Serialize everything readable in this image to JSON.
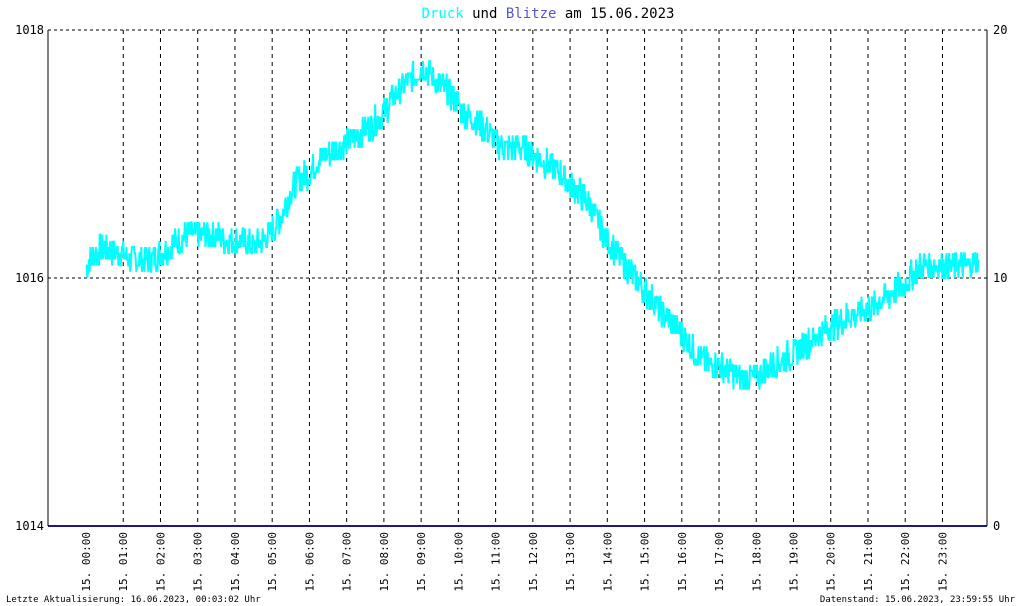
{
  "title": {
    "part1": "Druck",
    "part2": " und ",
    "part3": "Blitze",
    "part4": " am 15.06.2023",
    "color1": "#00ffff",
    "color2": "#000000",
    "color3": "#5555cc",
    "color4": "#000000"
  },
  "footer": {
    "left": "Letzte Aktualisierung: 16.06.2023, 00:03:02 Uhr",
    "right": "Datenstand: 15.06.2023, 23:59:55 Uhr"
  },
  "chart_data": {
    "type": "line",
    "grid": true,
    "left_axis": {
      "ylim": [
        1014,
        1018
      ],
      "ticks": [
        "1014",
        "1016",
        "1018"
      ]
    },
    "right_axis": {
      "ylim": [
        0,
        20
      ],
      "ticks": [
        "0",
        "10",
        "20"
      ]
    },
    "x_ticks": [
      "15. 00:00",
      "15. 01:00",
      "15. 02:00",
      "15. 03:00",
      "15. 04:00",
      "15. 05:00",
      "15. 06:00",
      "15. 07:00",
      "15. 08:00",
      "15. 09:00",
      "15. 10:00",
      "15. 11:00",
      "15. 12:00",
      "15. 13:00",
      "15. 14:00",
      "15. 15:00",
      "15. 16:00",
      "15. 17:00",
      "15. 18:00",
      "15. 19:00",
      "15. 20:00",
      "15. 21:00",
      "15. 22:00",
      "15. 23:00"
    ],
    "xlim_hours": [
      0,
      24
    ],
    "series": [
      {
        "color": "#00ffff",
        "axis": "left",
        "x_hours": [
          0.0,
          0.25,
          0.5,
          0.75,
          1.0,
          1.25,
          1.5,
          1.75,
          2.0,
          2.25,
          2.5,
          2.75,
          3.0,
          3.25,
          3.5,
          3.75,
          4.0,
          4.25,
          4.5,
          4.75,
          5.0,
          5.25,
          5.5,
          5.75,
          6.0,
          6.25,
          6.5,
          6.75,
          7.0,
          7.25,
          7.5,
          7.75,
          8.0,
          8.25,
          8.5,
          8.75,
          9.0,
          9.25,
          9.5,
          9.75,
          10.0,
          10.25,
          10.5,
          10.75,
          11.0,
          11.25,
          11.5,
          11.75,
          12.0,
          12.25,
          12.5,
          12.75,
          13.0,
          13.25,
          13.5,
          13.75,
          14.0,
          14.25,
          14.5,
          14.75,
          15.0,
          15.25,
          15.5,
          15.75,
          16.0,
          16.25,
          16.5,
          16.75,
          17.0,
          17.25,
          17.5,
          17.75,
          18.0,
          18.25,
          18.5,
          18.75,
          19.0,
          19.25,
          19.5,
          19.75,
          20.0,
          20.25,
          20.5,
          20.75,
          21.0,
          21.25,
          21.5,
          21.75,
          22.0,
          22.25,
          22.5,
          22.75,
          23.0,
          23.25,
          23.5,
          23.75,
          23.97
        ],
        "values": [
          1016.1,
          1016.2,
          1016.25,
          1016.2,
          1016.2,
          1016.15,
          1016.15,
          1016.15,
          1016.2,
          1016.25,
          1016.3,
          1016.35,
          1016.35,
          1016.35,
          1016.35,
          1016.3,
          1016.3,
          1016.3,
          1016.25,
          1016.3,
          1016.4,
          1016.5,
          1016.7,
          1016.8,
          1016.85,
          1016.95,
          1017.0,
          1017.05,
          1017.1,
          1017.15,
          1017.2,
          1017.25,
          1017.35,
          1017.45,
          1017.55,
          1017.6,
          1017.7,
          1017.65,
          1017.55,
          1017.5,
          1017.4,
          1017.3,
          1017.25,
          1017.2,
          1017.1,
          1017.05,
          1017.05,
          1017.05,
          1017.0,
          1016.95,
          1016.9,
          1016.85,
          1016.75,
          1016.7,
          1016.6,
          1016.45,
          1016.3,
          1016.2,
          1016.1,
          1016.0,
          1015.9,
          1015.8,
          1015.7,
          1015.65,
          1015.55,
          1015.45,
          1015.35,
          1015.3,
          1015.3,
          1015.25,
          1015.2,
          1015.2,
          1015.2,
          1015.25,
          1015.3,
          1015.35,
          1015.4,
          1015.45,
          1015.5,
          1015.55,
          1015.6,
          1015.65,
          1015.7,
          1015.7,
          1015.75,
          1015.8,
          1015.85,
          1015.9,
          1015.95,
          1016.05,
          1016.1,
          1016.1,
          1016.1,
          1016.1,
          1016.1,
          1016.1,
          1016.15
        ]
      },
      {
        "color": "#1a1a80",
        "axis": "right",
        "x_hours": [
          0,
          24
        ],
        "values": [
          0,
          0
        ]
      }
    ]
  }
}
